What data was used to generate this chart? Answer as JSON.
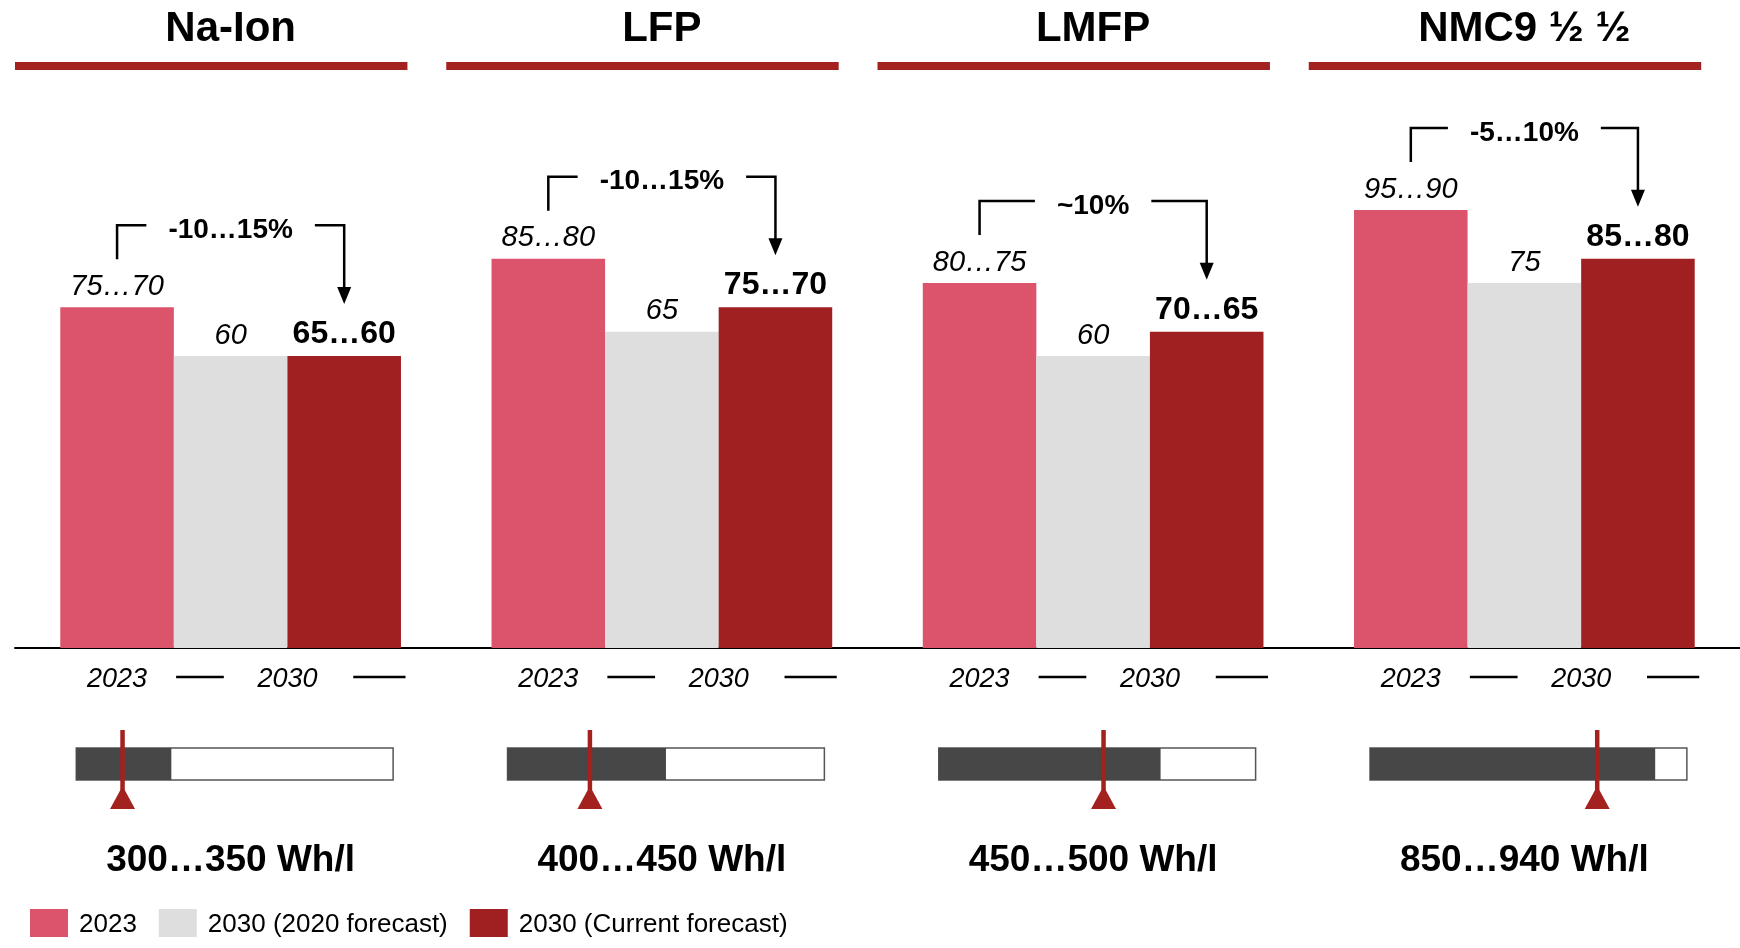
{
  "chart_data": {
    "type": "bar",
    "categories": [
      "Na-Ion",
      "LFP",
      "LMFP",
      "NMC9 ½ ½"
    ],
    "series": [
      {
        "name": "2023",
        "color": "#dc546b",
        "values": [
          70,
          80,
          75,
          90
        ],
        "value_labels": [
          "75…70",
          "85…80",
          "80…75",
          "95…90"
        ]
      },
      {
        "name": "2030 (2020 forecast)",
        "color": "#dedede",
        "values": [
          60,
          65,
          60,
          75
        ],
        "value_labels": [
          "60",
          "65",
          "60",
          "75"
        ]
      },
      {
        "name": "2030 (Current forecast)",
        "color": "#a01f21",
        "values": [
          60,
          70,
          65,
          80
        ],
        "value_labels": [
          "65…60",
          "75…70",
          "70…65",
          "85…80"
        ]
      }
    ],
    "annotations": [
      "-10…15%",
      "2023",
      "2030",
      "300…350 Wh/l",
      "-10…15%",
      "2023",
      "2030",
      "400…450 Wh/l",
      "~10%",
      "2023",
      "2030",
      "450…500 Wh/l",
      "-5…10%",
      "2023",
      "2030",
      "850…940 Wh/l"
    ],
    "legend": "bottom left",
    "tick_labels": "x"
  }
}
